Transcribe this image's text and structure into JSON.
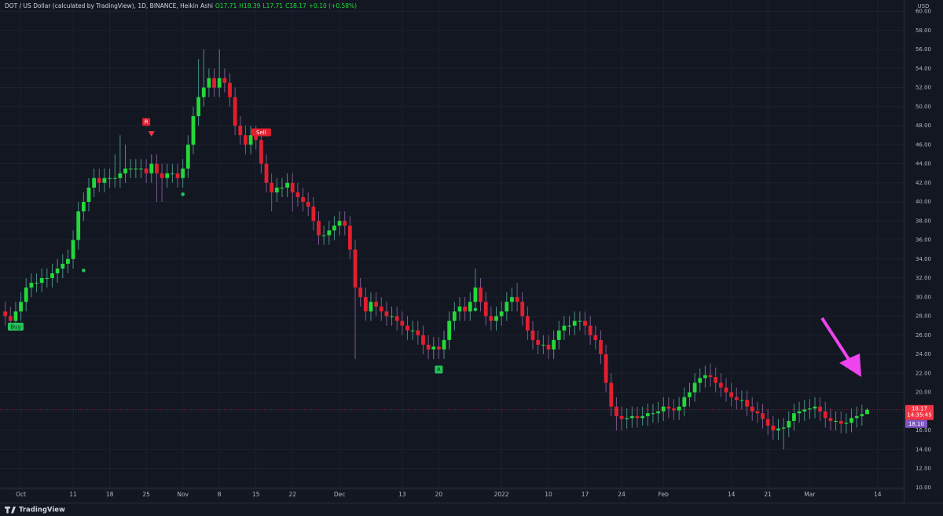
{
  "chart_data": {
    "type": "candlestick",
    "legend_parts": [
      "DOT / US Dollar (calculated by TradingView), 1D, BINANCE, Heikin Ashi",
      "O17.71",
      "H18.39",
      "L17.71",
      "C18.17",
      "+0.10 (+0.58%)"
    ],
    "currency": "USD",
    "branding": "TradingView",
    "up_color": "#23d83a",
    "down_color": "#e21f2f",
    "x": [
      "2021-09-28",
      "2021-09-29",
      "2021-09-30",
      "2021-10-01",
      "2021-10-02",
      "2021-10-03",
      "2021-10-04",
      "2021-10-05",
      "2021-10-06",
      "2021-10-07",
      "2021-10-08",
      "2021-10-09",
      "2021-10-10",
      "2021-10-11",
      "2021-10-12",
      "2021-10-13",
      "2021-10-14",
      "2021-10-15",
      "2021-10-16",
      "2021-10-17",
      "2021-10-18",
      "2021-10-19",
      "2021-10-20",
      "2021-10-21",
      "2021-10-22",
      "2021-10-23",
      "2021-10-24",
      "2021-10-25",
      "2021-10-26",
      "2021-10-27",
      "2021-10-28",
      "2021-10-29",
      "2021-10-30",
      "2021-10-31",
      "2021-11-01",
      "2021-11-02",
      "2021-11-03",
      "2021-11-04",
      "2021-11-05",
      "2021-11-06",
      "2021-11-07",
      "2021-11-08",
      "2021-11-09",
      "2021-11-10",
      "2021-11-11",
      "2021-11-12",
      "2021-11-13",
      "2021-11-14",
      "2021-11-15",
      "2021-11-16",
      "2021-11-17",
      "2021-11-18",
      "2021-11-19",
      "2021-11-20",
      "2021-11-21",
      "2021-11-22",
      "2021-11-23",
      "2021-11-24",
      "2021-11-25",
      "2021-11-26",
      "2021-11-27",
      "2021-11-28",
      "2021-11-29",
      "2021-11-30",
      "2021-12-01",
      "2021-12-02",
      "2021-12-03",
      "2021-12-04",
      "2021-12-05",
      "2021-12-06",
      "2021-12-07",
      "2021-12-08",
      "2021-12-09",
      "2021-12-10",
      "2021-12-11",
      "2021-12-12",
      "2021-12-13",
      "2021-12-14",
      "2021-12-15",
      "2021-12-16",
      "2021-12-17",
      "2021-12-18",
      "2021-12-19",
      "2021-12-20",
      "2021-12-21",
      "2021-12-22",
      "2021-12-23",
      "2021-12-24",
      "2021-12-25",
      "2021-12-26",
      "2021-12-27",
      "2021-12-28",
      "2021-12-29",
      "2021-12-30",
      "2021-12-31",
      "2022-01-01",
      "2022-01-02",
      "2022-01-03",
      "2022-01-04",
      "2022-01-05",
      "2022-01-06",
      "2022-01-07",
      "2022-01-08",
      "2022-01-09",
      "2022-01-10",
      "2022-01-11",
      "2022-01-12",
      "2022-01-13",
      "2022-01-14",
      "2022-01-15",
      "2022-01-16",
      "2022-01-17",
      "2022-01-18",
      "2022-01-19",
      "2022-01-20",
      "2022-01-21",
      "2022-01-22",
      "2022-01-23",
      "2022-01-24",
      "2022-01-25",
      "2022-01-26",
      "2022-01-27",
      "2022-01-28",
      "2022-01-29",
      "2022-01-30",
      "2022-01-31",
      "2022-02-01",
      "2022-02-02",
      "2022-02-03",
      "2022-02-04",
      "2022-02-05",
      "2022-02-06",
      "2022-02-07",
      "2022-02-08",
      "2022-02-09",
      "2022-02-10",
      "2022-02-11",
      "2022-02-12",
      "2022-02-13",
      "2022-02-14",
      "2022-02-15",
      "2022-02-16",
      "2022-02-17",
      "2022-02-18",
      "2022-02-19",
      "2022-02-20",
      "2022-02-21",
      "2022-02-22",
      "2022-02-23",
      "2022-02-24",
      "2022-02-25",
      "2022-02-26",
      "2022-02-27",
      "2022-02-28",
      "2022-03-01",
      "2022-03-02",
      "2022-03-03",
      "2022-03-04",
      "2022-03-05",
      "2022-03-06",
      "2022-03-07",
      "2022-03-08",
      "2022-03-09",
      "2022-03-10",
      "2022-03-11",
      "2022-03-12"
    ],
    "open": [
      28.5,
      28,
      27.5,
      28.5,
      29.5,
      31,
      31.5,
      31.5,
      32,
      32,
      32.5,
      33,
      33.5,
      34,
      36,
      39,
      40,
      41.5,
      42.5,
      42,
      42.5,
      42.5,
      42.5,
      43,
      43.5,
      43.5,
      43.5,
      43.5,
      43,
      44,
      43,
      42.5,
      43,
      43,
      42.5,
      43.5,
      46,
      49,
      51,
      52,
      53,
      52,
      53,
      52.5,
      51,
      48,
      47,
      46,
      47,
      46.5,
      44,
      42,
      41,
      41.5,
      41.5,
      42,
      41,
      40.5,
      40,
      39.5,
      38,
      36.5,
      36.5,
      37,
      37.5,
      38,
      37.5,
      35,
      31,
      30,
      28.5,
      29.5,
      29,
      28.5,
      28,
      28,
      27.5,
      27,
      26.5,
      26.5,
      26,
      25,
      24.5,
      24.8,
      24.5,
      25.5,
      27.5,
      28.5,
      29,
      28.5,
      29.5,
      31,
      29.5,
      28,
      27.5,
      28,
      28.5,
      29.5,
      30,
      29.5,
      28,
      26.5,
      25.5,
      25,
      25,
      24.5,
      25.5,
      26.5,
      27,
      27,
      27.5,
      27.5,
      27,
      26,
      25.5,
      24,
      21,
      18.5,
      17.5,
      17.2,
      17.3,
      17.5,
      17.3,
      17.5,
      17.8,
      17.8,
      18,
      18.5,
      18.3,
      18.1,
      18.5,
      19.5,
      20,
      21,
      21.5,
      21.8,
      21.6,
      21,
      20.5,
      20,
      19.5,
      19.2,
      19.2,
      18.5,
      18,
      17.8,
      17.2,
      16.5,
      16,
      16.2,
      16.3,
      17,
      17.8,
      18,
      18.2,
      18.3,
      18.5,
      18,
      17.3,
      17,
      17,
      16.7,
      16.8,
      17.3,
      17.5,
      17.71
    ],
    "high": [
      29.5,
      29,
      29.5,
      30.5,
      32,
      32.5,
      32.5,
      33,
      33,
      33.5,
      34,
      34.5,
      35,
      37,
      40,
      41,
      42.5,
      43.5,
      43.5,
      43.5,
      43.5,
      45,
      47,
      46,
      44.5,
      44.5,
      44.5,
      44.5,
      45,
      45,
      44,
      44,
      44,
      44,
      44.5,
      47,
      50,
      55,
      56,
      54,
      54,
      56,
      54,
      53.5,
      52,
      49,
      48,
      48,
      48,
      47.5,
      45,
      43,
      42.5,
      42.5,
      43,
      43,
      42,
      41.5,
      41,
      40.5,
      39,
      37.5,
      38,
      38.5,
      39,
      39,
      38.5,
      36,
      32,
      31,
      30.5,
      30.5,
      30,
      29.5,
      29,
      29,
      28.5,
      28,
      27.5,
      27.5,
      27,
      26,
      25.8,
      25.8,
      26.5,
      28.5,
      29.5,
      30,
      30,
      30.5,
      33,
      32,
      30.5,
      29,
      29,
      29.5,
      30.5,
      31,
      31.5,
      30.5,
      29,
      27.5,
      26.5,
      26,
      26,
      26.5,
      27.5,
      28,
      28,
      28.5,
      28.5,
      28.5,
      28,
      27,
      26.5,
      25,
      22,
      19.5,
      18.5,
      18.3,
      18.5,
      18.5,
      18.5,
      18.8,
      18.8,
      19,
      19.5,
      19.5,
      19.3,
      19.5,
      20.5,
      21,
      22,
      22.5,
      22.8,
      23,
      22.6,
      22,
      21.5,
      21,
      20.5,
      20.2,
      20.2,
      19.5,
      19,
      18.8,
      18.2,
      17.5,
      17.2,
      17.3,
      18,
      18.8,
      19,
      19.2,
      19.3,
      19.5,
      19.5,
      19,
      18.3,
      18,
      18,
      17.8,
      18.3,
      18.5,
      18.7,
      18.39
    ],
    "low": [
      27,
      26.5,
      26.5,
      27.5,
      28.5,
      30,
      30.5,
      30.5,
      31,
      31,
      31.5,
      32,
      32.5,
      33,
      35,
      38,
      39,
      40.5,
      41,
      41,
      41.5,
      41.5,
      41.5,
      42,
      42.5,
      42.5,
      42.5,
      42,
      42,
      40,
      40,
      41.5,
      42,
      41.5,
      41.5,
      42.5,
      45,
      48,
      50,
      51,
      51,
      51,
      51.5,
      50,
      47,
      46,
      45,
      45,
      45.5,
      43,
      41,
      39,
      40,
      40.5,
      40.5,
      39,
      39.5,
      39,
      38.5,
      37,
      35.5,
      35.5,
      35.5,
      36,
      36.5,
      36.5,
      34,
      23.5,
      29,
      27.5,
      27.5,
      28,
      27.5,
      27,
      27,
      26.5,
      26,
      25.5,
      25.5,
      25,
      24,
      23.5,
      23.5,
      23.5,
      23.5,
      24.5,
      26.5,
      27.5,
      27.5,
      27.5,
      28.5,
      28.5,
      27,
      26.5,
      26.5,
      27,
      27.5,
      28.5,
      28.5,
      27,
      25.5,
      24.5,
      24,
      24,
      23.5,
      23.5,
      24.5,
      25.5,
      26,
      26,
      26.5,
      26,
      25,
      24.5,
      23,
      20,
      17.5,
      16,
      16,
      16.2,
      16.3,
      16.3,
      16.5,
      16.5,
      16.8,
      16.8,
      17,
      17.3,
      17.1,
      17.1,
      17.5,
      18.5,
      19,
      20,
      20.5,
      20.6,
      20,
      19.5,
      19,
      18.5,
      18.2,
      18.2,
      17.5,
      17,
      16.8,
      16.2,
      15.5,
      15,
      15,
      14,
      15.3,
      16,
      16.8,
      17,
      17.2,
      17.3,
      17,
      16.3,
      16,
      16,
      15.7,
      15.7,
      15.8,
      16.3,
      16.5,
      17.71
    ],
    "close": [
      28,
      27.5,
      28.5,
      29.5,
      31,
      31.5,
      31.5,
      32,
      32,
      32.5,
      33,
      33.5,
      34,
      36,
      39,
      40,
      41.5,
      42.5,
      42,
      42.5,
      42.5,
      42.5,
      43,
      43.5,
      43.5,
      43.5,
      43.5,
      43,
      44,
      43,
      42.5,
      43,
      43,
      42.5,
      43.5,
      46,
      49,
      51,
      52,
      53,
      52,
      53,
      52.5,
      51,
      48,
      47,
      46,
      47,
      46.5,
      44,
      42,
      41,
      41.5,
      41.5,
      42,
      41,
      40.5,
      40,
      39.5,
      38,
      36.5,
      36.5,
      37,
      37.5,
      38,
      37.5,
      35,
      31,
      30,
      28.5,
      29.5,
      29,
      28.5,
      28,
      28,
      27.5,
      27,
      26.5,
      26.5,
      26,
      25,
      24.5,
      24.8,
      24.5,
      25.5,
      27.5,
      28.5,
      29,
      28.5,
      29.5,
      31,
      29.5,
      28,
      27.5,
      28,
      28.5,
      29.5,
      30,
      29.5,
      28,
      26.5,
      25.5,
      25,
      25,
      24.5,
      25.5,
      26.5,
      27,
      27,
      27.5,
      27.5,
      27,
      26,
      25.5,
      24,
      21,
      18.5,
      17.5,
      17.2,
      17.3,
      17.5,
      17.3,
      17.5,
      17.8,
      17.8,
      18,
      18.5,
      18.3,
      18.1,
      18.5,
      19.5,
      20,
      21,
      21.5,
      21.8,
      21.6,
      21,
      20.5,
      20,
      19.5,
      19.2,
      19.2,
      18.5,
      18,
      17.8,
      17.2,
      16.5,
      16,
      16.2,
      16.3,
      17,
      17.8,
      18,
      18.2,
      18.3,
      18.5,
      18,
      17.3,
      17,
      17,
      16.7,
      16.8,
      17.3,
      17.5,
      17.71,
      18.17
    ],
    "xlim": [
      "2021-09-27",
      "2022-03-19"
    ],
    "xticks": [
      {
        "value": "2021-10-01",
        "label": "Oct"
      },
      {
        "value": "2021-10-11",
        "label": "11"
      },
      {
        "value": "2021-10-18",
        "label": "18"
      },
      {
        "value": "2021-10-25",
        "label": "25"
      },
      {
        "value": "2021-11-01",
        "label": "Nov"
      },
      {
        "value": "2021-11-08",
        "label": "8"
      },
      {
        "value": "2021-11-15",
        "label": "15"
      },
      {
        "value": "2021-11-22",
        "label": "22"
      },
      {
        "value": "2021-12-01",
        "label": "Dec"
      },
      {
        "value": "2021-12-13",
        "label": "13"
      },
      {
        "value": "2021-12-20",
        "label": "20"
      },
      {
        "value": "2022-01-01",
        "label": "2022"
      },
      {
        "value": "2022-01-10",
        "label": "10"
      },
      {
        "value": "2022-01-17",
        "label": "17"
      },
      {
        "value": "2022-01-24",
        "label": "24"
      },
      {
        "value": "2022-02-01",
        "label": "Feb"
      },
      {
        "value": "2022-02-14",
        "label": "14"
      },
      {
        "value": "2022-02-21",
        "label": "21"
      },
      {
        "value": "2022-03-01",
        "label": "Mar"
      },
      {
        "value": "2022-03-14",
        "label": "14"
      }
    ],
    "ylim": [
      9.9,
      61.2
    ],
    "yticks": [
      {
        "value": 10,
        "label": "10.00"
      },
      {
        "value": 12,
        "label": "12.00"
      },
      {
        "value": 14,
        "label": "14.00"
      },
      {
        "value": 16,
        "label": "16.00"
      },
      {
        "value": 18,
        "label": "18.00"
      },
      {
        "value": 20,
        "label": "20.00"
      },
      {
        "value": 22,
        "label": "22.00"
      },
      {
        "value": 24,
        "label": "24.00"
      },
      {
        "value": 26,
        "label": "26.00"
      },
      {
        "value": 28,
        "label": "28.00"
      },
      {
        "value": 30,
        "label": "30.00"
      },
      {
        "value": 32,
        "label": "32.00"
      },
      {
        "value": 34,
        "label": "34.00"
      },
      {
        "value": 36,
        "label": "36.00"
      },
      {
        "value": 38,
        "label": "38.00"
      },
      {
        "value": 40,
        "label": "40.00"
      },
      {
        "value": 42,
        "label": "42.00"
      },
      {
        "value": 44,
        "label": "44.00"
      },
      {
        "value": 46,
        "label": "46.00"
      },
      {
        "value": 48,
        "label": "48.00"
      },
      {
        "value": 50,
        "label": "50.00"
      },
      {
        "value": 52,
        "label": "52.00"
      },
      {
        "value": 54,
        "label": "54.00"
      },
      {
        "value": 56,
        "label": "56.00"
      },
      {
        "value": 58,
        "label": "58.00"
      },
      {
        "value": 60,
        "label": "60.00"
      }
    ],
    "grid": true,
    "last_price": {
      "value": 18.17,
      "countdown": "14:35:45",
      "color": "#f23645"
    },
    "second_price": {
      "value": 18.1,
      "label": "18.10",
      "color": "#7e57c2"
    },
    "signals": [
      {
        "text": "Buy",
        "x": "2021-09-30",
        "y": 26.9,
        "color": "#22c35a",
        "shape": "label"
      },
      {
        "text": "R",
        "x": "2021-10-25",
        "y": 48.4,
        "color": "#e21f2f",
        "shape": "label"
      },
      {
        "x": "2021-10-26",
        "y": 47.1,
        "color": "#f23645",
        "shape": "triangle"
      },
      {
        "text": "Sell",
        "x": "2021-11-16",
        "y": 47.3,
        "color": "#e21f2f",
        "shape": "label"
      },
      {
        "text": "R",
        "x": "2021-12-20",
        "y": 22.4,
        "color": "#22c35a",
        "shape": "label"
      },
      {
        "x": "2021-10-13",
        "y": 32.8,
        "color": "#22c35a",
        "shape": "dot"
      },
      {
        "x": "2021-11-01",
        "y": 40.8,
        "color": "#22c35a",
        "shape": "dot"
      },
      {
        "x": "2021-12-27",
        "y": 28.7,
        "color": "#22c35a",
        "shape": "dot"
      }
    ]
  }
}
